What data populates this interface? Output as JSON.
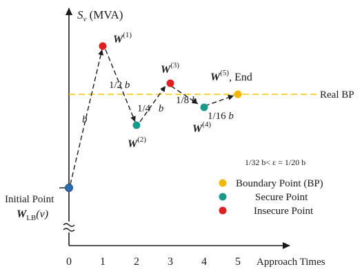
{
  "chart_data": {
    "type": "scatter",
    "title": "",
    "ylabel": {
      "main": "S",
      "sub": "v",
      "unit": " (MVA)"
    },
    "xlabel": "Approach Times",
    "x_ticks": [
      "0",
      "1",
      "2",
      "3",
      "4",
      "5"
    ],
    "xlim": [
      0,
      5.6
    ],
    "grid": false,
    "reference_line": {
      "label": "Real BP",
      "color": "#f5c200"
    },
    "points": [
      {
        "x": 0,
        "type": "secure"
      },
      {
        "x": 1,
        "type": "insecure"
      },
      {
        "x": 2,
        "type": "secure"
      },
      {
        "x": 3,
        "type": "insecure"
      },
      {
        "x": 4,
        "type": "secure"
      },
      {
        "x": 5,
        "type": "boundary"
      }
    ],
    "point_labels": {
      "initial": {
        "line1": "Initial Point",
        "main": "W",
        "sub": "LB",
        "arg": "(v)"
      },
      "w1": {
        "main": "W",
        "sup": "(1)"
      },
      "w2": {
        "main": "W",
        "sup": "(2)"
      },
      "w3": {
        "main": "W",
        "sup": "(3)"
      },
      "w4": {
        "main": "W",
        "sup": "(4)"
      },
      "w5": {
        "main": "W",
        "sup": "(5)",
        "suffix": ", End"
      }
    },
    "step_labels": [
      {
        "coef": "",
        "var": "b"
      },
      {
        "coef": "1/2 ",
        "var": "b"
      },
      {
        "coef": "1/4 ",
        "var": "b"
      },
      {
        "coef": "1/8 ",
        "var": "b"
      },
      {
        "coef": "1/16 ",
        "var": "b"
      }
    ],
    "condition_note": "1/32 b< ε = 1/20 b",
    "legend": {
      "position": "right",
      "items": [
        {
          "label": "Boundary Point (BP)",
          "color": "#f5b800"
        },
        {
          "label": "Secure Point",
          "color": "#1a9a8a"
        },
        {
          "label": "Insecure Point",
          "color": "#e02020"
        }
      ]
    },
    "colors": {
      "secure": "#1a9a8a",
      "insecure": "#e02020",
      "boundary": "#f5b800",
      "initial": "#2a6fb0",
      "axis": "#1a1a1a"
    }
  }
}
